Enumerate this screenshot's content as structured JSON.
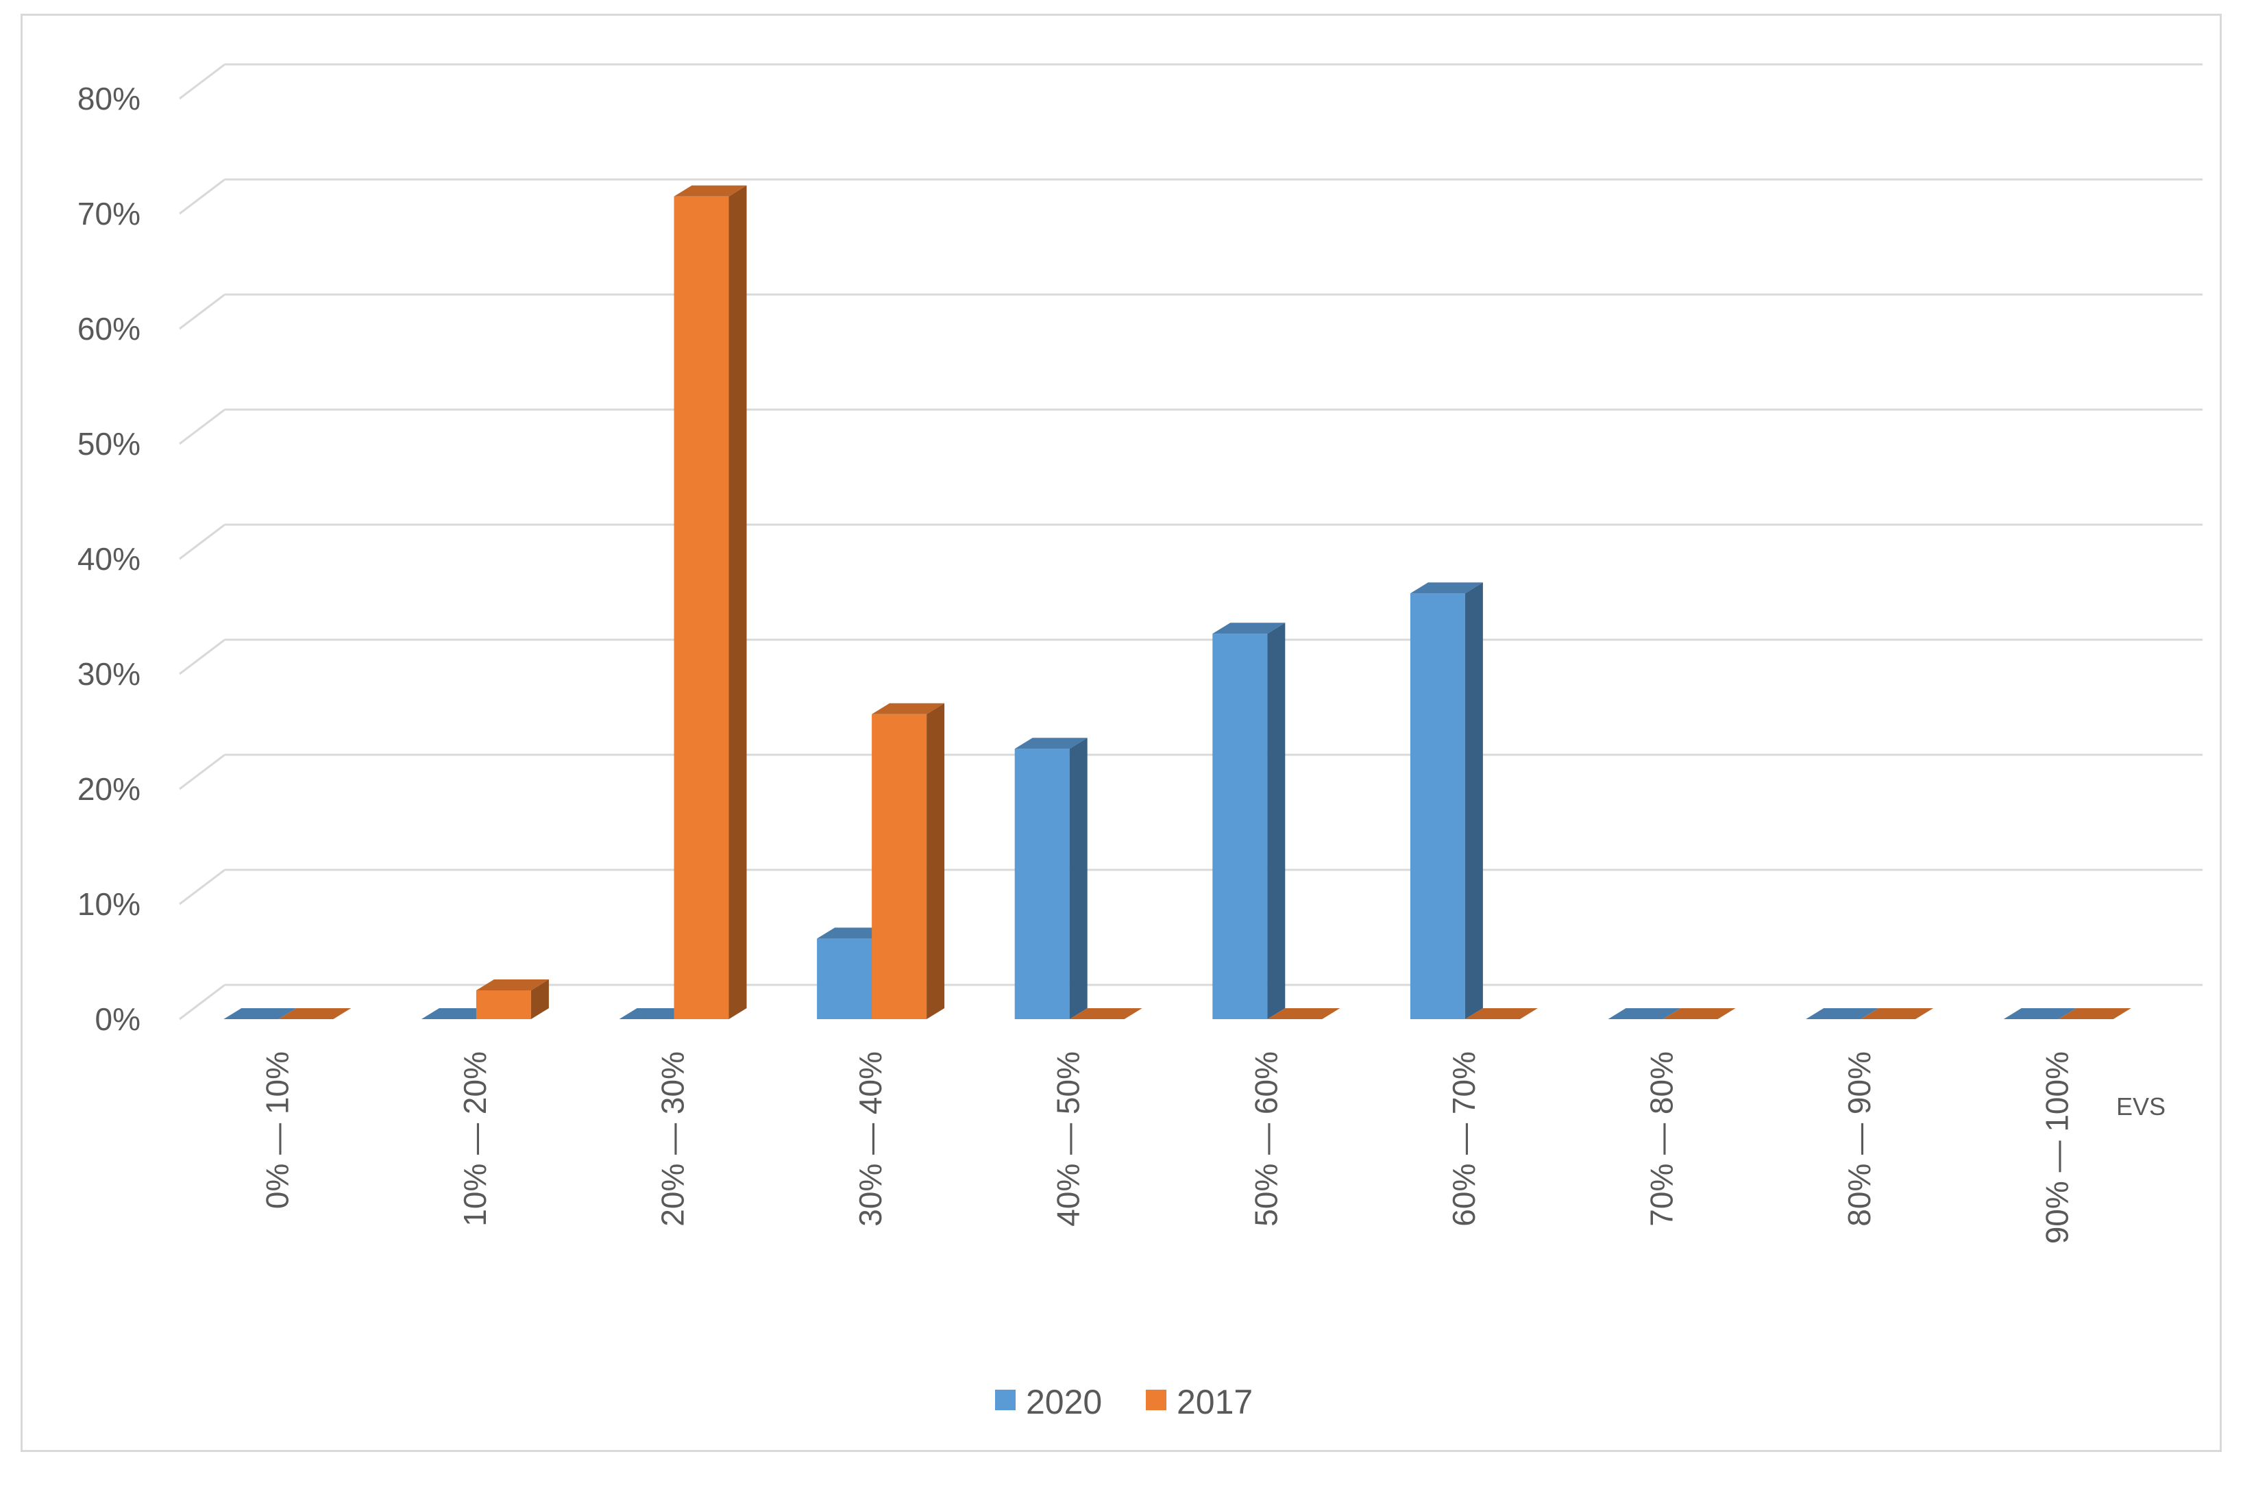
{
  "chart_data": {
    "type": "bar",
    "style": "3d-clustered-column",
    "title": "",
    "xlabel": "EVS",
    "ylabel": "",
    "categories": [
      "0% — 10%",
      "10% — 20%",
      "20% — 30%",
      "30% — 40%",
      "40% — 50%",
      "50% — 60%",
      "60% — 70%",
      "70% — 80%",
      "80% — 90%",
      "90% — 100%"
    ],
    "series": [
      {
        "name": "2020",
        "color": "#5b9bd5",
        "values": [
          0,
          0,
          0,
          7,
          23.5,
          33.5,
          37,
          0,
          0,
          0
        ]
      },
      {
        "name": "2017",
        "color": "#ed7d31",
        "values": [
          0,
          2.5,
          71.5,
          26.5,
          0,
          0,
          0,
          0,
          0,
          0
        ]
      }
    ],
    "ylim": [
      0,
      80
    ],
    "yticks": [
      "0%",
      "10%",
      "20%",
      "30%",
      "40%",
      "50%",
      "60%",
      "70%",
      "80%"
    ],
    "grid": true,
    "legend": "bottom-center"
  }
}
